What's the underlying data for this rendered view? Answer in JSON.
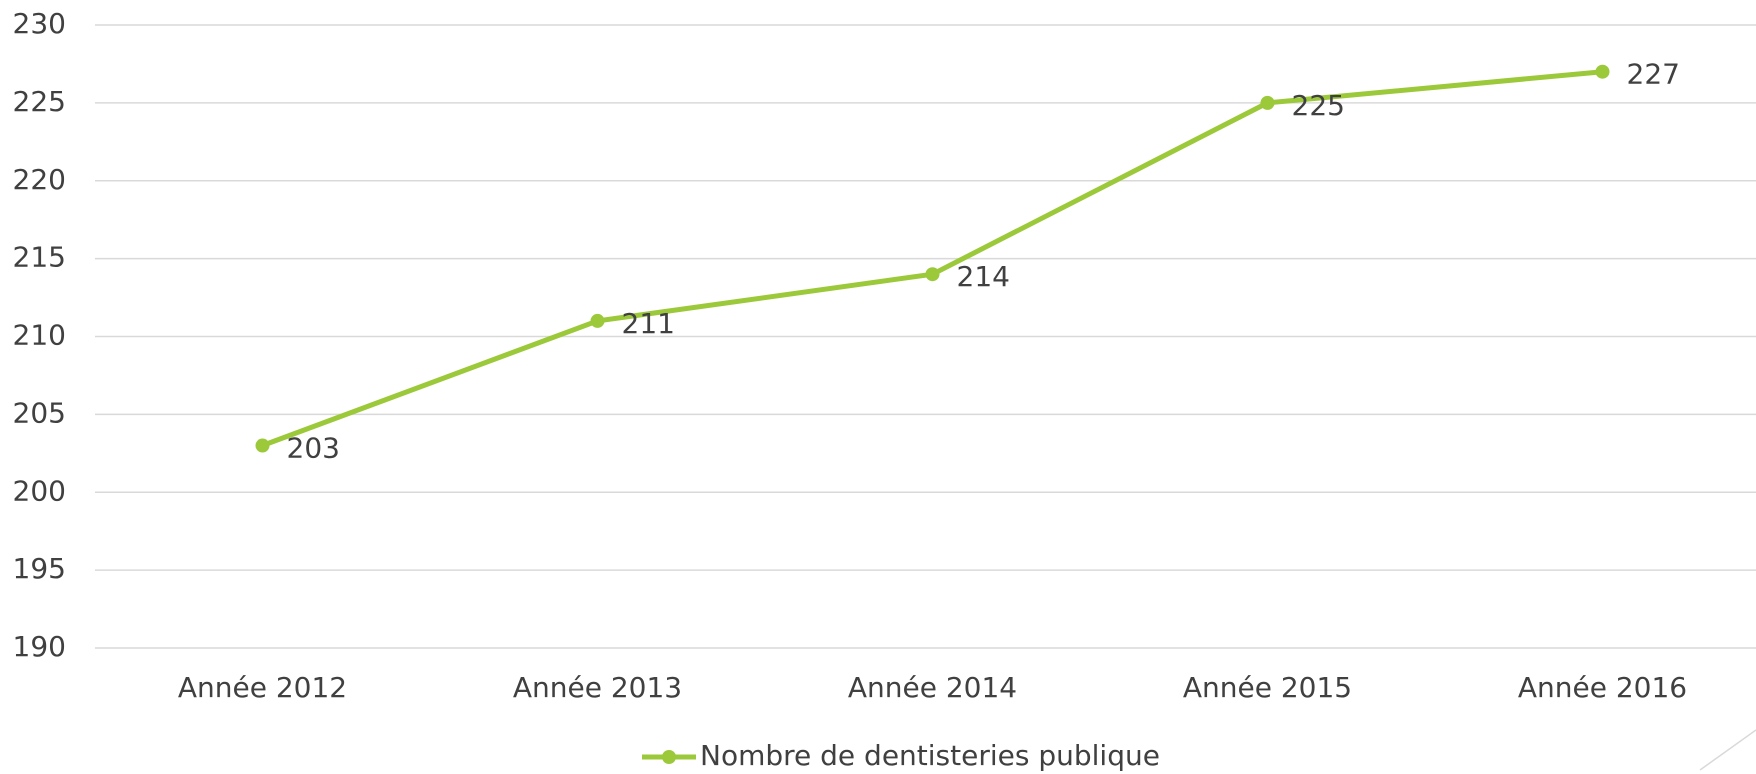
{
  "chart_data": {
    "type": "line",
    "categories": [
      "Année 2012",
      "Année 2013",
      "Année 2014",
      "Année 2015",
      "Année 2016"
    ],
    "series": [
      {
        "name": "Nombre de dentisteries publique",
        "color": "#9bc93a",
        "values": [
          203,
          211,
          214,
          225,
          227
        ]
      }
    ],
    "ylim": [
      190,
      230
    ],
    "yticks": [
      190,
      195,
      200,
      205,
      210,
      215,
      220,
      225,
      230
    ],
    "grid": true,
    "legend": "bottom",
    "data_labels": true
  }
}
